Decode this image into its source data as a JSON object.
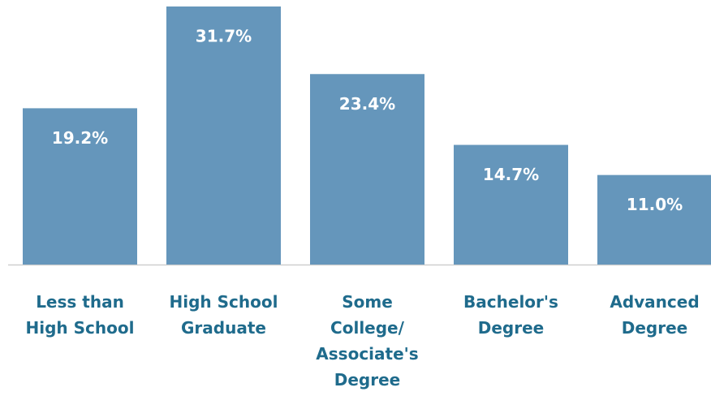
{
  "chart_data": {
    "type": "bar",
    "categories": [
      "Less than\nHigh School",
      "High School\nGraduate",
      "Some\nCollege/\nAssociate's\nDegree",
      "Bachelor's\nDegree",
      "Advanced\nDegree"
    ],
    "values": [
      19.2,
      31.7,
      23.4,
      14.7,
      11.0
    ],
    "value_labels": [
      "19.2%",
      "31.7%",
      "23.4%",
      "14.7%",
      "11.0%"
    ],
    "color": "#6596bb"
  }
}
